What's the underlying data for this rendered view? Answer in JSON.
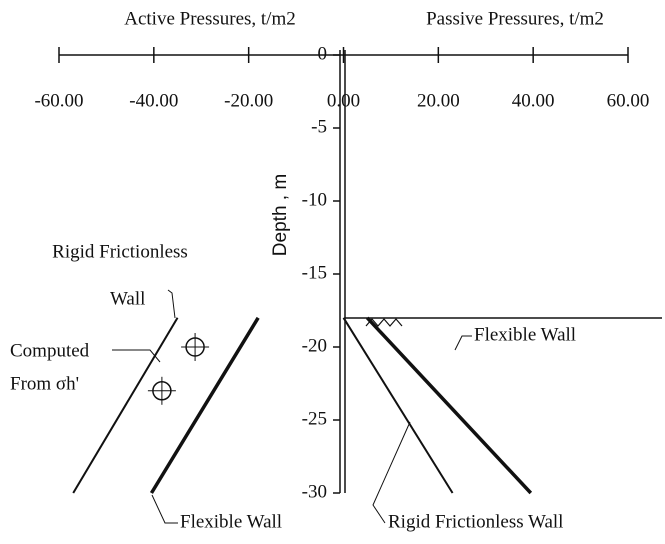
{
  "chart_data": {
    "type": "line",
    "x_label_left": "Active Pressures, t/m2",
    "x_label_right": "Passive Pressures, t/m2",
    "y_label": "Depth , m",
    "xlim": [
      -60,
      60
    ],
    "xticks": [
      {
        "value": -60,
        "label": "-60.00"
      },
      {
        "value": -40,
        "label": "-40.00"
      },
      {
        "value": -20,
        "label": "-20.00"
      },
      {
        "value": 0,
        "label": "0.00"
      },
      {
        "value": 20,
        "label": "20.00"
      },
      {
        "value": 40,
        "label": "40.00"
      },
      {
        "value": 60,
        "label": "60.00"
      }
    ],
    "ylim": [
      -30,
      0
    ],
    "yticks": [
      0,
      -5,
      -10,
      -15,
      -20,
      -25,
      -30
    ],
    "series": [
      {
        "x": [
          -35,
          -57
        ],
        "values": [
          -18,
          -30
        ],
        "color": "#111",
        "width": 2
      },
      {
        "x": [
          -18,
          -40.5
        ],
        "values": [
          -18,
          -30
        ],
        "color": "#111",
        "width": 3.5
      },
      {
        "x": [
          0,
          23
        ],
        "values": [
          -18,
          -30
        ],
        "color": "#111",
        "width": 2
      },
      {
        "x": [
          5,
          39.5
        ],
        "values": [
          -18,
          -30
        ],
        "color": "#111",
        "width": 3.5
      }
    ],
    "points": {
      "x": [
        -31.3,
        -38.3
      ],
      "values": [
        -20,
        -23
      ],
      "color": "#111"
    },
    "annotations": [
      "Rigid Frictionless",
      "Wall",
      "Computed",
      "From σh'",
      "Flexible  Wall",
      "Rigid Frictionless Wall",
      "Flexible   Wall"
    ]
  }
}
